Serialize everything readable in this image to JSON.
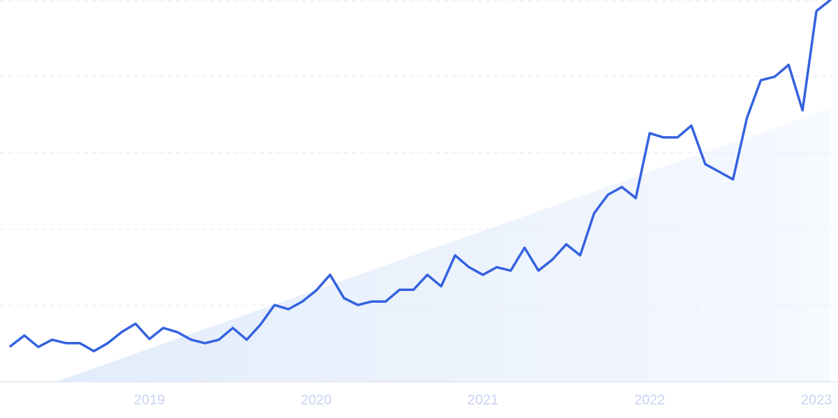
{
  "chart_data": {
    "type": "line",
    "categories": [
      null,
      null,
      null,
      null,
      null,
      null,
      null,
      null,
      null,
      null,
      "2019",
      null,
      null,
      null,
      null,
      null,
      null,
      null,
      null,
      null,
      null,
      null,
      "2020",
      null,
      null,
      null,
      null,
      null,
      null,
      null,
      null,
      null,
      null,
      null,
      "2021",
      null,
      null,
      null,
      null,
      null,
      null,
      null,
      null,
      null,
      null,
      null,
      "2022",
      null,
      null,
      null,
      null,
      null,
      null,
      null,
      null,
      null,
      null,
      null,
      "2023",
      null
    ],
    "values": [
      9.3,
      12.1,
      9.1,
      11.0,
      10.1,
      10.1,
      8.0,
      10.1,
      13.0,
      15.2,
      11.2,
      14.1,
      13.0,
      11.0,
      10.1,
      11.0,
      14.1,
      11.0,
      15.0,
      20.1,
      19.0,
      21.0,
      23.9,
      28.0,
      21.9,
      20.1,
      21.0,
      21.0,
      24.1,
      24.1,
      28.0,
      25.0,
      33.1,
      30.0,
      28.0,
      30.0,
      29.1,
      35.1,
      29.1,
      32.0,
      36.0,
      33.1,
      44.1,
      49.0,
      51.0,
      48.1,
      65.1,
      64.0,
      64.0,
      67.1,
      57.0,
      55.0,
      53.0,
      69.1,
      79.0,
      79.9,
      83.0,
      71.1,
      97.1,
      100
    ],
    "color": "#3462e0",
    "ylim": [
      0,
      100
    ],
    "yticks": [
      0,
      20,
      40,
      60,
      80,
      100
    ],
    "grid": true
  }
}
